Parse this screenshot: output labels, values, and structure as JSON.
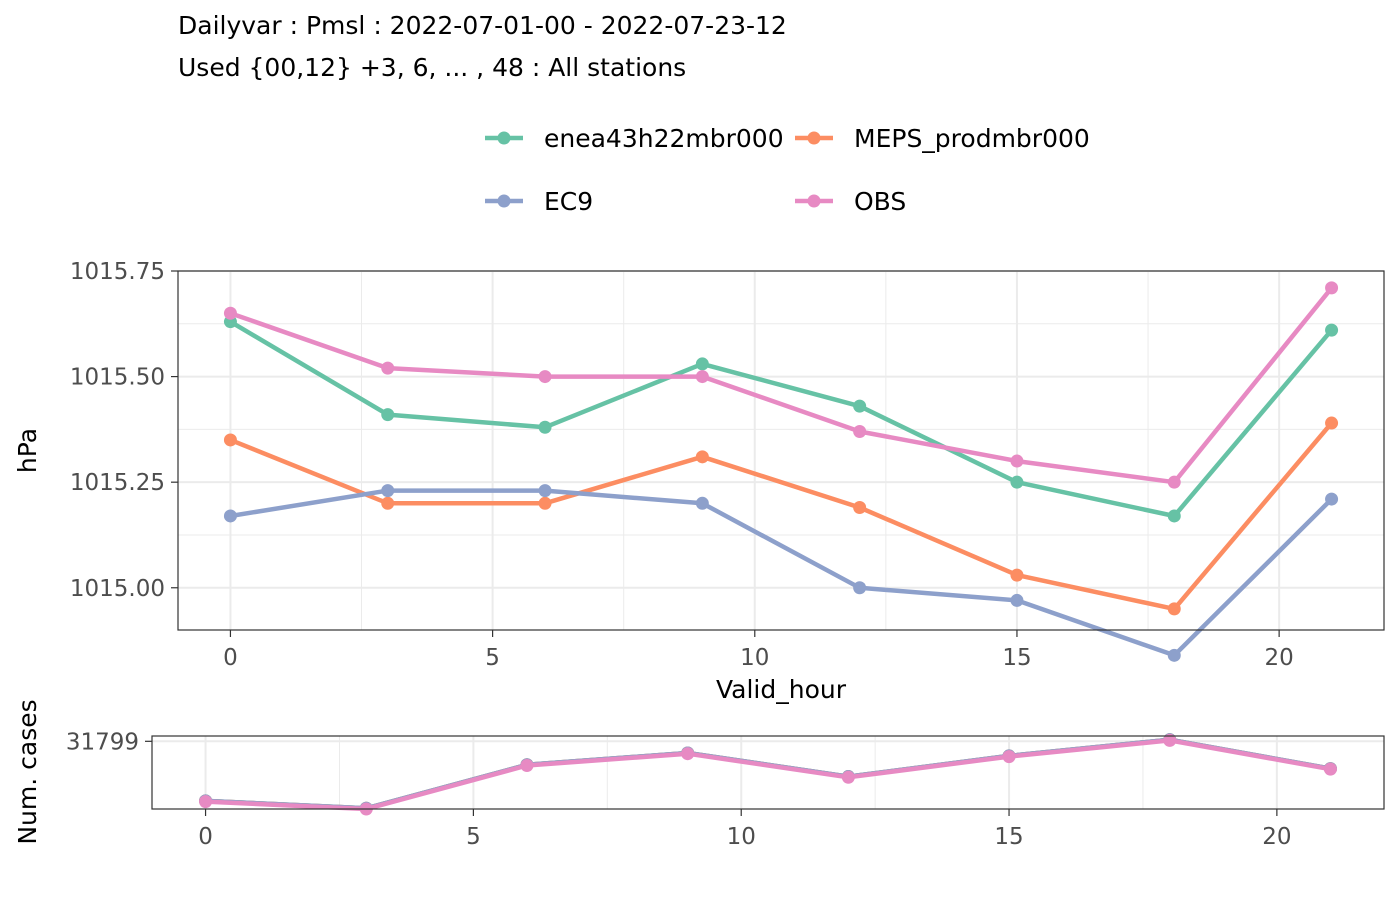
{
  "title_line1": "Dailyvar : Pmsl : 2022-07-01-00 - 2022-07-23-12",
  "title_line2": "Used {00,12} +3, 6, ... , 48 : All stations",
  "legend": [
    {
      "name": "enea43h22mbr000",
      "color": "#66C2A5"
    },
    {
      "name": "MEPS_prodmbr000",
      "color": "#FC8D62"
    },
    {
      "name": "EC9",
      "color": "#8DA0CB"
    },
    {
      "name": "OBS",
      "color": "#E78AC3"
    }
  ],
  "chart_data": [
    {
      "type": "line",
      "xlabel": "Valid_hour",
      "ylabel": "hPa",
      "xlim": [
        -1,
        22
      ],
      "ylim": [
        1014.9,
        1015.75
      ],
      "xticks": [
        0,
        5,
        10,
        15,
        20
      ],
      "yticks": [
        1015.0,
        1015.25,
        1015.5,
        1015.75
      ],
      "ytick_labels": [
        "1015.00",
        "1015.25",
        "1015.50",
        "1015.75"
      ],
      "grid": true,
      "x": [
        0,
        3,
        6,
        9,
        12,
        15,
        18,
        21
      ],
      "series": [
        {
          "name": "enea43h22mbr000",
          "color": "#66C2A5",
          "values": [
            1015.63,
            1015.41,
            1015.38,
            1015.53,
            1015.43,
            1015.25,
            1015.17,
            1015.61
          ]
        },
        {
          "name": "MEPS_prodmbr000",
          "color": "#FC8D62",
          "values": [
            1015.35,
            1015.2,
            1015.2,
            1015.31,
            1015.19,
            1015.03,
            1014.95,
            1015.39
          ]
        },
        {
          "name": "EC9",
          "color": "#8DA0CB",
          "values": [
            1015.17,
            1015.23,
            1015.23,
            1015.2,
            1015.0,
            1014.97,
            1014.84,
            1015.21
          ]
        },
        {
          "name": "OBS",
          "color": "#E78AC3",
          "values": [
            1015.65,
            1015.52,
            1015.5,
            1015.5,
            1015.37,
            1015.3,
            1015.25,
            1015.71
          ]
        }
      ]
    },
    {
      "type": "line",
      "xlabel": "",
      "ylabel": "Num. cases",
      "xlim": [
        -1,
        22
      ],
      "ylim": [
        31340,
        31835
      ],
      "xticks": [
        0,
        5,
        10,
        15,
        20
      ],
      "yticks": [
        31799
      ],
      "ytick_labels": [
        "31799"
      ],
      "grid": true,
      "x": [
        0,
        3,
        6,
        9,
        12,
        15,
        18,
        21
      ],
      "series": [
        {
          "name": "enea43h22mbr000",
          "color": "#66C2A5",
          "values": [
            31395,
            31345,
            31640,
            31720,
            31560,
            31700,
            31810,
            31614
          ]
        },
        {
          "name": "MEPS_prodmbr000",
          "color": "#FC8D62",
          "values": [
            31395,
            31345,
            31640,
            31720,
            31560,
            31700,
            31810,
            31614
          ]
        },
        {
          "name": "EC9",
          "color": "#8DA0CB",
          "values": [
            31395,
            31345,
            31640,
            31720,
            31560,
            31700,
            31810,
            31614
          ]
        },
        {
          "name": "OBS",
          "color": "#E78AC3",
          "values": [
            31390,
            31340,
            31635,
            31715,
            31555,
            31695,
            31805,
            31610
          ]
        }
      ]
    }
  ]
}
